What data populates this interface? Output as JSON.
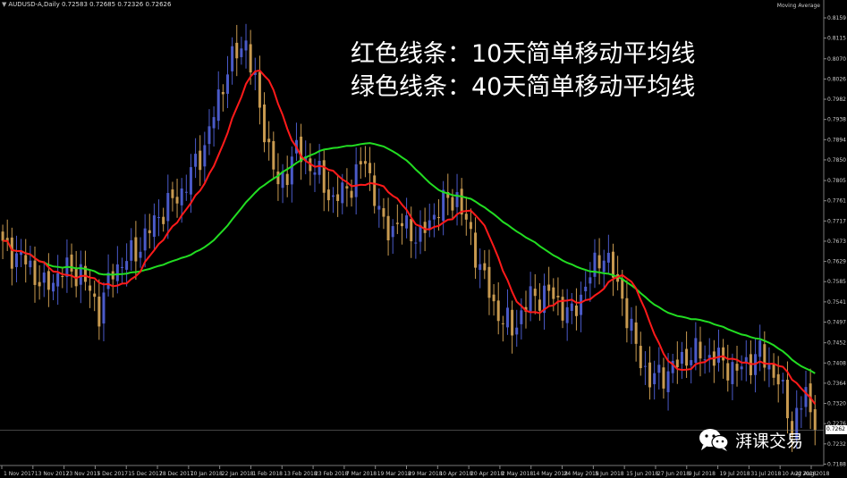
{
  "header": {
    "symbol_info": "AUDUSD-A,Daily 0.72583 0.72685 0.72326 0.72626",
    "indicator_label": "Moving Average"
  },
  "legend": {
    "red_line": "红色线条：10天简单移动平均线",
    "green_line": "绿色线条：40天简单移动平均线"
  },
  "watermark": {
    "text": "湃课交易",
    "icon": "wechat-icon"
  },
  "current_price": "0.7262",
  "colors": {
    "background": "#000000",
    "bull_candle": "#4a5ac8",
    "bear_candle": "#c89a50",
    "ma10": "#ff1a1a",
    "ma40": "#22dd22",
    "grid": "#222222"
  },
  "chart_data": {
    "type": "candlestick",
    "title": "AUDUSD-A,Daily",
    "ylim": [
      0.7183,
      0.8159
    ],
    "y_ticks": [
      "0.8159",
      "0.8115",
      "0.8070",
      "0.8026",
      "0.7982",
      "0.7938",
      "0.7894",
      "0.7850",
      "0.7805",
      "0.7761",
      "0.7717",
      "0.7673",
      "0.7629",
      "0.7585",
      "0.7541",
      "0.7497",
      "0.7452",
      "0.7408",
      "0.7364",
      "0.7320",
      "0.7276",
      "0.7232",
      "0.7188"
    ],
    "x_ticks": [
      "1 Nov 2017",
      "13 Nov 2017",
      "23 Nov 2017",
      "5 Dec 2017",
      "15 Dec 2017",
      "28 Dec 2017",
      "10 Jan 2018",
      "22 Jan 2018",
      "1 Feb 2018",
      "13 Feb 2018",
      "23 Feb 2018",
      "7 Mar 2018",
      "19 Mar 2018",
      "29 Mar 2018",
      "10 Apr 2018",
      "20 Apr 2018",
      "2 May 2018",
      "14 May 2018",
      "24 May 2018",
      "5 Jun 2018",
      "15 Jun 2018",
      "27 Jun 2018",
      "9 Jul 2018",
      "19 Jul 2018",
      "31 Jul 2018",
      "10 Aug 2018",
      "22 Aug 2018"
    ],
    "close_anchors": [
      [
        0,
        0.766
      ],
      [
        5,
        0.763
      ],
      [
        9,
        0.757
      ],
      [
        13,
        0.761
      ],
      [
        17,
        0.7605
      ],
      [
        21,
        0.752
      ],
      [
        24,
        0.761
      ],
      [
        29,
        0.765
      ],
      [
        34,
        0.773
      ],
      [
        39,
        0.778
      ],
      [
        44,
        0.788
      ],
      [
        49,
        0.805
      ],
      [
        53,
        0.811
      ],
      [
        56,
        0.796
      ],
      [
        60,
        0.779
      ],
      [
        64,
        0.787
      ],
      [
        68,
        0.783
      ],
      [
        72,
        0.776
      ],
      [
        76,
        0.78
      ],
      [
        79,
        0.785
      ],
      [
        83,
        0.77
      ],
      [
        87,
        0.771
      ],
      [
        91,
        0.768
      ],
      [
        95,
        0.775
      ],
      [
        99,
        0.777
      ],
      [
        103,
        0.765
      ],
      [
        107,
        0.753
      ],
      [
        111,
        0.748
      ],
      [
        115,
        0.755
      ],
      [
        119,
        0.756
      ],
      [
        124,
        0.751
      ],
      [
        128,
        0.76
      ],
      [
        131,
        0.765
      ],
      [
        135,
        0.755
      ],
      [
        138,
        0.744
      ],
      [
        141,
        0.737
      ],
      [
        145,
        0.739
      ],
      [
        150,
        0.743
      ],
      [
        155,
        0.742
      ],
      [
        160,
        0.739
      ],
      [
        165,
        0.743
      ],
      [
        169,
        0.737
      ],
      [
        172,
        0.727
      ],
      [
        175,
        0.734
      ],
      [
        177,
        0.7262
      ]
    ],
    "series": [
      {
        "name": "红色线条：10天简单移动平均线",
        "period": 10
      },
      {
        "name": "绿色线条：40天简单移动平均线",
        "period": 40
      }
    ]
  }
}
